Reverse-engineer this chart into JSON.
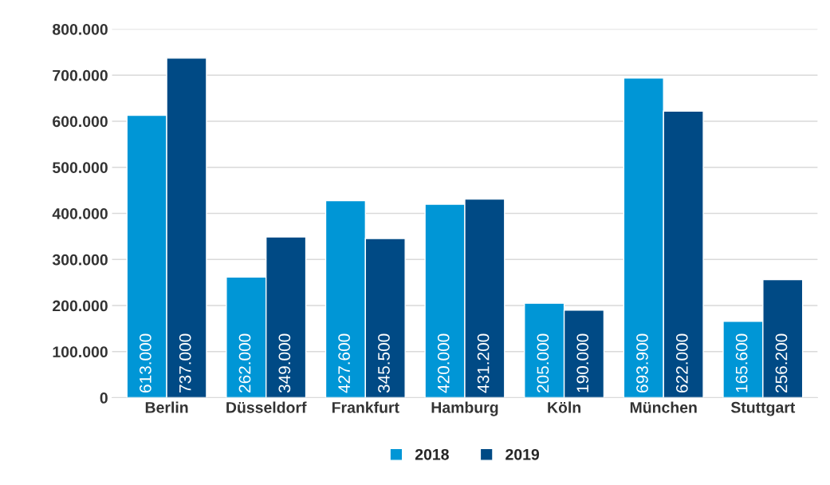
{
  "chart_data": {
    "type": "bar",
    "categories": [
      "Berlin",
      "Düsseldorf",
      "Frankfurt",
      "Hamburg",
      "Köln",
      "München",
      "Stuttgart"
    ],
    "series": [
      {
        "name": "2018",
        "color": "#0096d6",
        "values": [
          613000,
          262000,
          427600,
          420000,
          205000,
          693900,
          165600
        ],
        "value_labels": [
          "613.000",
          "262.000",
          "427.600",
          "420.000",
          "205.000",
          "693.900",
          "165.600"
        ]
      },
      {
        "name": "2019",
        "color": "#004a85",
        "values": [
          737000,
          349000,
          345500,
          431200,
          190000,
          622000,
          256200
        ],
        "value_labels": [
          "737.000",
          "349.000",
          "345.500",
          "431.200",
          "190.000",
          "622.000",
          "256.200"
        ]
      }
    ],
    "ylim": [
      0,
      800000
    ],
    "yticks": [
      {
        "value": 0,
        "label": "0"
      },
      {
        "value": 100000,
        "label": "100.000"
      },
      {
        "value": 200000,
        "label": "200.000"
      },
      {
        "value": 300000,
        "label": "300.000"
      },
      {
        "value": 400000,
        "label": "400.000"
      },
      {
        "value": 500000,
        "label": "500.000"
      },
      {
        "value": 600000,
        "label": "600.000"
      },
      {
        "value": 700000,
        "label": "700.000"
      },
      {
        "value": 800000,
        "label": "800.000"
      }
    ],
    "grid": "y",
    "legend": "bottom"
  }
}
